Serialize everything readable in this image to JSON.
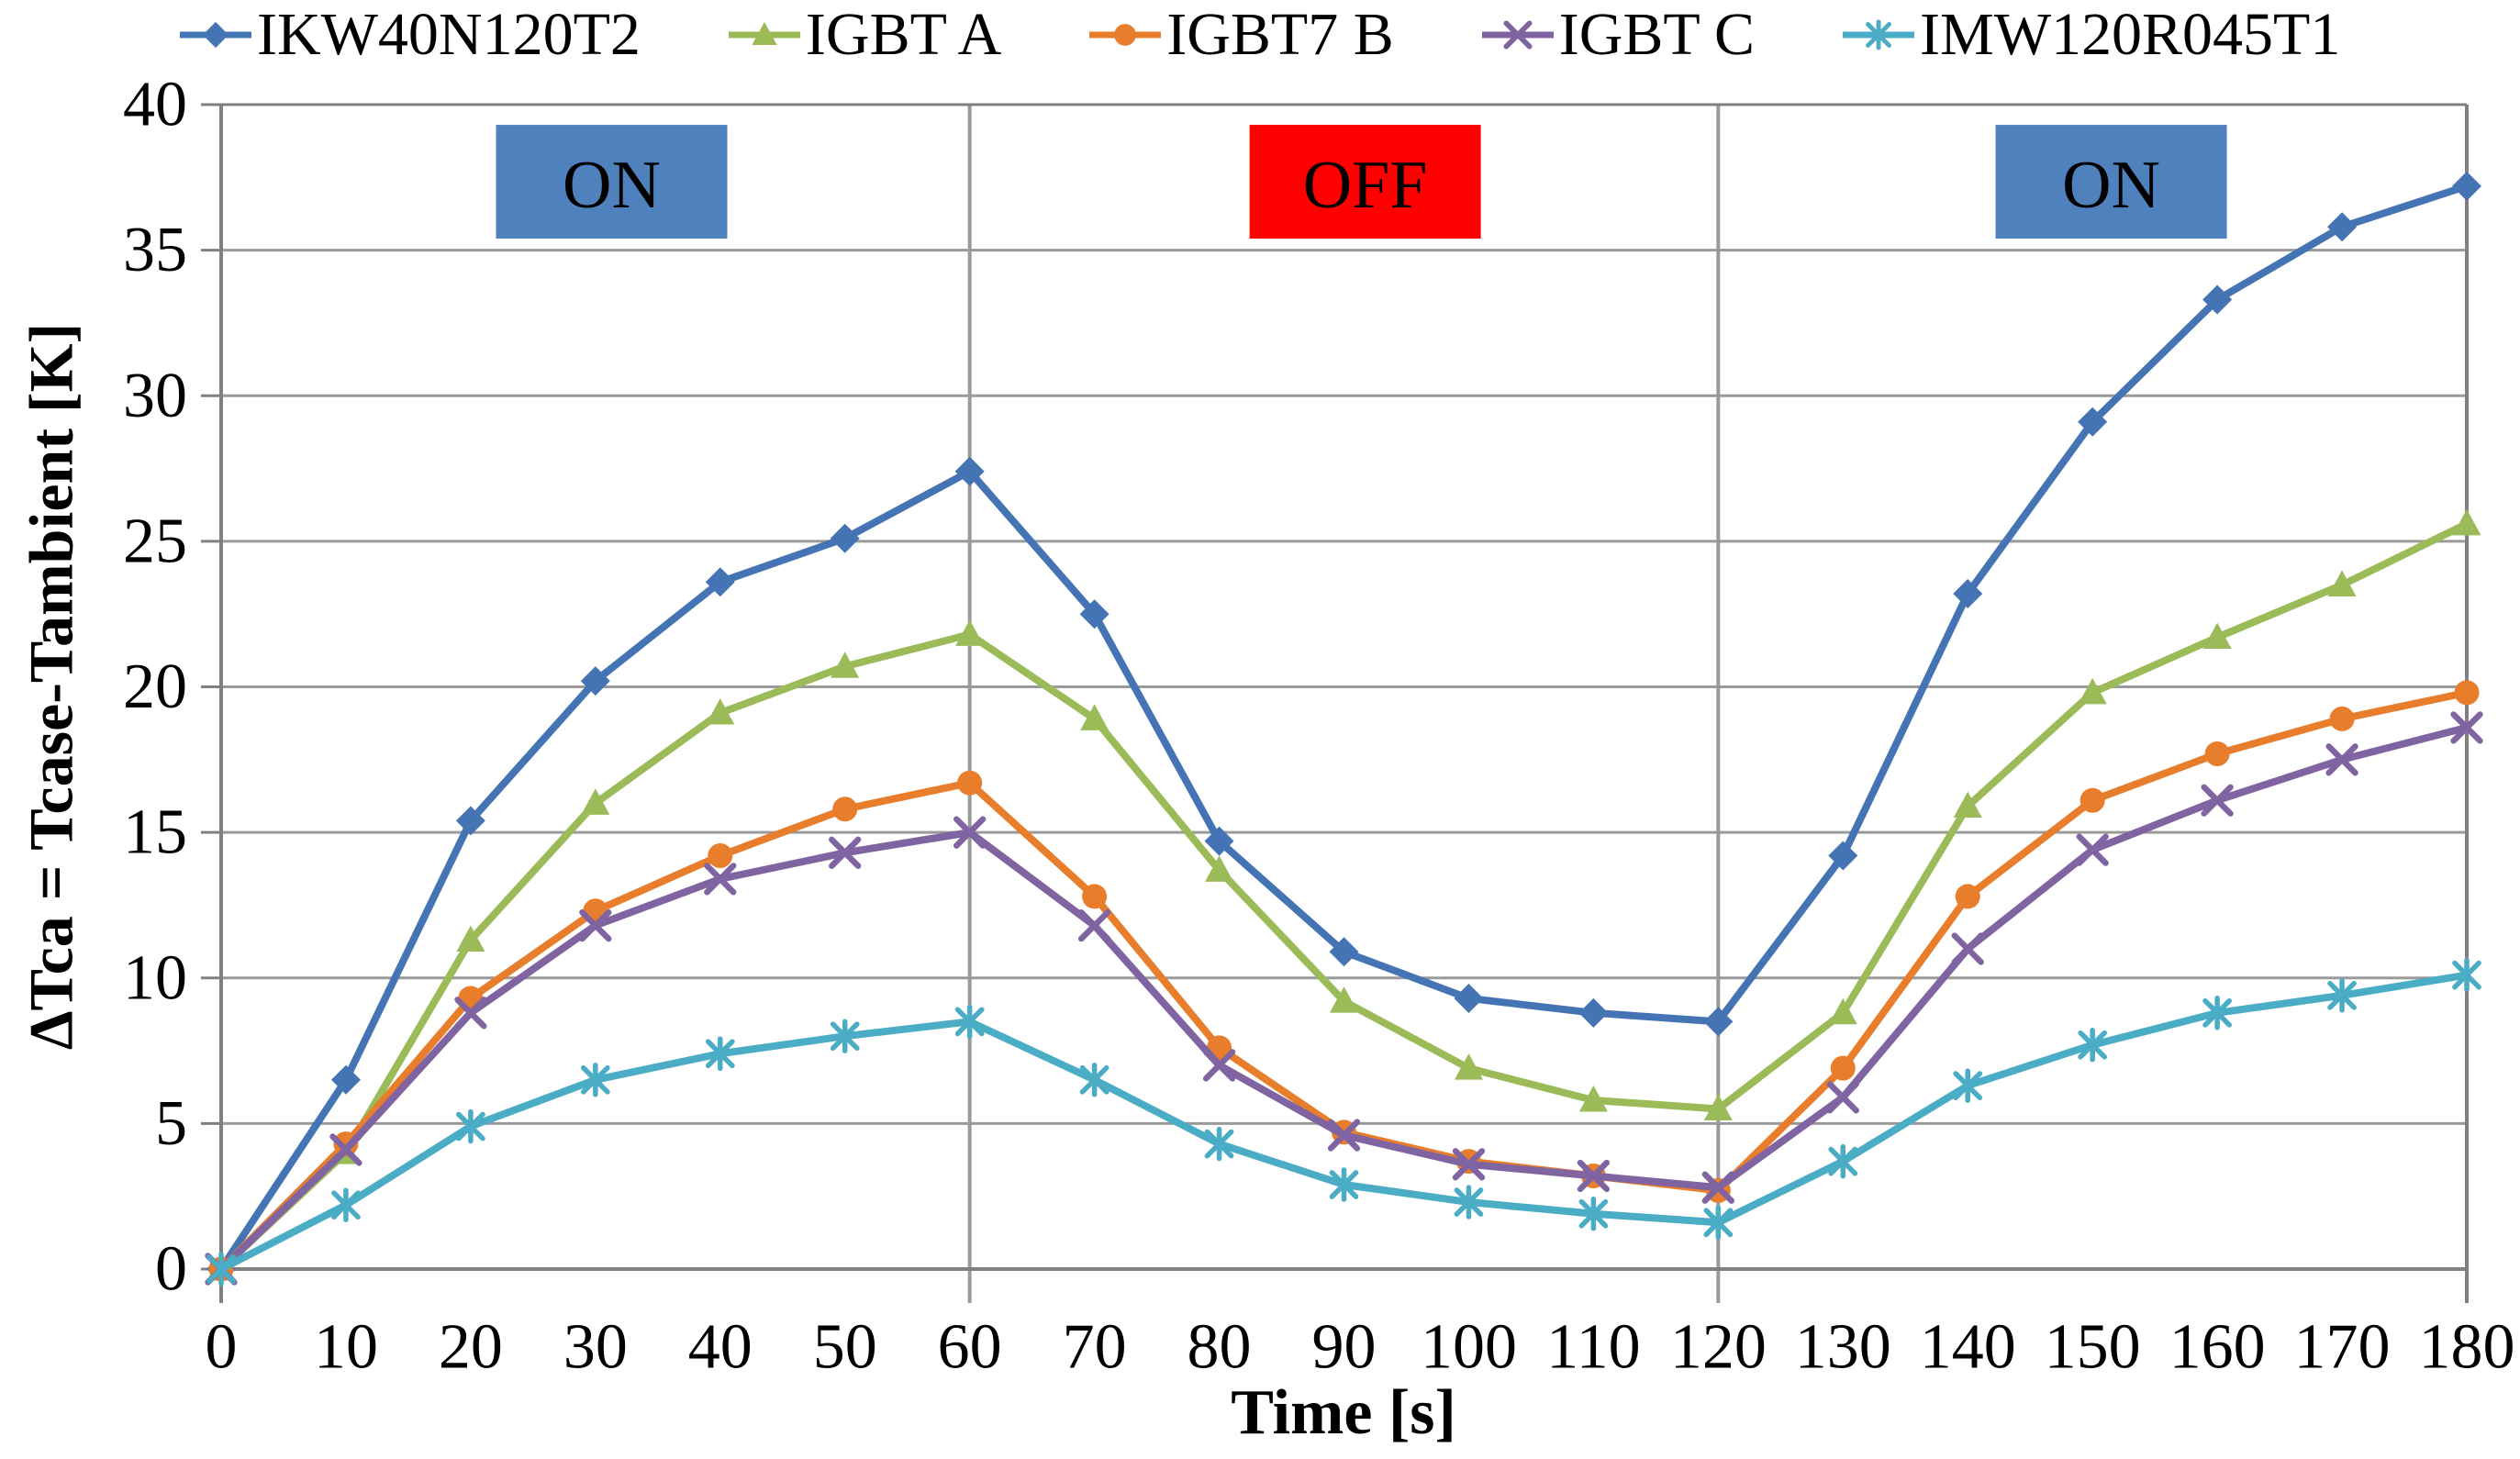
{
  "chart_data": {
    "type": "line",
    "title": "",
    "xlabel": "Time [s]",
    "ylabel": "ΔTca = Tcase-Tambient [K]",
    "x": [
      0,
      10,
      20,
      30,
      40,
      50,
      60,
      70,
      80,
      90,
      100,
      110,
      120,
      130,
      140,
      150,
      160,
      170,
      180
    ],
    "x_tick_labels": [
      "0",
      "10",
      "20",
      "30",
      "40",
      "50",
      "60",
      "70",
      "80",
      "90",
      "100",
      "110",
      "120",
      "130",
      "140",
      "150",
      "160",
      "170",
      "180"
    ],
    "y_tick_labels": [
      "0",
      "5",
      "10",
      "15",
      "20",
      "25",
      "30",
      "35",
      "40"
    ],
    "xlim": [
      0,
      180
    ],
    "ylim": [
      0,
      40
    ],
    "y_tick_step": 5,
    "x_tick_step": 10,
    "grid": "horizontal gridlines every 5 K; vertical boundary lines at 60 s and 120 s; full plot border",
    "legend_position": "top",
    "colors": {
      "grid": "#9A9A9A",
      "border": "#808080",
      "text": "#000000",
      "on_box": "#4F81BD",
      "off_box": "#FE0000"
    },
    "series": [
      {
        "name": "IKW40N120T2",
        "color": "#4574B4",
        "marker": "diamond",
        "values": [
          0,
          6.5,
          15.4,
          20.2,
          23.6,
          25.1,
          27.4,
          22.5,
          14.7,
          10.9,
          9.3,
          8.8,
          8.5,
          14.2,
          23.2,
          29.1,
          33.3,
          35.8,
          37.2
        ]
      },
      {
        "name": "IGBT A",
        "color": "#9BBB59",
        "marker": "triangle",
        "values": [
          0,
          4.0,
          11.3,
          16.0,
          19.1,
          20.7,
          21.8,
          18.9,
          13.7,
          9.2,
          6.9,
          5.8,
          5.5,
          8.8,
          15.9,
          19.8,
          21.7,
          23.5,
          25.6
        ]
      },
      {
        "name": "IGBT7 B",
        "color": "#E87E2B",
        "marker": "circle",
        "values": [
          0,
          4.3,
          9.3,
          12.3,
          14.2,
          15.8,
          16.7,
          12.8,
          7.6,
          4.7,
          3.7,
          3.2,
          2.7,
          6.9,
          12.8,
          16.1,
          17.7,
          18.9,
          19.8
        ]
      },
      {
        "name": "IGBT C",
        "color": "#8064A2",
        "marker": "x",
        "values": [
          0,
          4.1,
          8.8,
          11.8,
          13.4,
          14.3,
          15.0,
          11.8,
          7.0,
          4.6,
          3.6,
          3.2,
          2.8,
          5.9,
          11.0,
          14.4,
          16.1,
          17.5,
          18.6
        ]
      },
      {
        "name": "IMW120R045T1",
        "color": "#4BACC6",
        "marker": "asterisk",
        "values": [
          0,
          2.2,
          4.9,
          6.5,
          7.4,
          8.0,
          8.5,
          6.5,
          4.3,
          2.9,
          2.3,
          1.9,
          1.6,
          3.7,
          6.3,
          7.7,
          8.8,
          9.4,
          10.1
        ]
      }
    ],
    "annotations": [
      {
        "label": "ON",
        "fill": "#4F81BD",
        "text_color": "#000000",
        "t_center": 31.3,
        "v_center": 37.35
      },
      {
        "label": "OFF",
        "fill": "#FE0000",
        "text_color": "#000000",
        "t_center": 91.7,
        "v_center": 37.35
      },
      {
        "label": "ON",
        "fill": "#4F81BD",
        "text_color": "#000000",
        "t_center": 151.5,
        "v_center": 37.35
      }
    ]
  }
}
